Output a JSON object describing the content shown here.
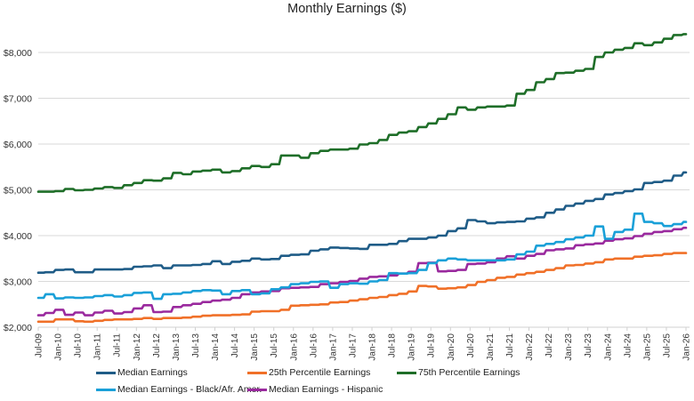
{
  "chart_data": {
    "type": "line",
    "title": "Monthly Earnings ($)",
    "xlabel": "",
    "ylabel": "",
    "ylim": [
      2000,
      8000
    ],
    "yticks": [
      2000,
      3000,
      4000,
      5000,
      6000,
      7000,
      8000
    ],
    "ytick_labels": [
      "$2,000",
      "$3,000",
      "$4,000",
      "$5,000",
      "$6,000",
      "$7,000",
      "$8,000"
    ],
    "grid": true,
    "legend_position": "bottom",
    "xtick_labels": [
      "Jul-09",
      "Jan-10",
      "Jul-10",
      "Jan-11",
      "Jul-11",
      "Jan-12",
      "Jul-12",
      "Jan-13",
      "Jul-13",
      "Jan-14",
      "Jul-14",
      "Jan-15",
      "Jul-15",
      "Jan-16",
      "Jul-16",
      "Jan-17",
      "Jul-17",
      "Jan-18",
      "Jul-18",
      "Jan-19",
      "Jul-19",
      "Jan-20",
      "Jul-20",
      "Jan-21",
      "Jul-21",
      "Jan-22",
      "Jul-22",
      "Jan-23",
      "Jul-23",
      "Jan-24",
      "Jul-24",
      "Jan-25",
      "Jul-25",
      "Jan-26"
    ],
    "x_unit": "quarters since Jul-09",
    "x": [
      0,
      1,
      2,
      3,
      4,
      5,
      6,
      7,
      8,
      9,
      10,
      11,
      12,
      13,
      14,
      15,
      16,
      17,
      18,
      19,
      20,
      21,
      22,
      23,
      24,
      25,
      26,
      27,
      28,
      29,
      30,
      31,
      32,
      33,
      34,
      35,
      36,
      37,
      38,
      39,
      40,
      41,
      42,
      43,
      44,
      45,
      46,
      47,
      48,
      49,
      50,
      51,
      52,
      53,
      54,
      55,
      56,
      57,
      58,
      59,
      60,
      61,
      62,
      63,
      64,
      65,
      66
    ],
    "series": [
      {
        "name": "Median Earnings",
        "color": "#1f5c87",
        "values": [
          3190,
          3200,
          3250,
          3260,
          3200,
          3200,
          3260,
          3260,
          3260,
          3270,
          3320,
          3330,
          3350,
          3290,
          3350,
          3350,
          3360,
          3380,
          3440,
          3380,
          3430,
          3450,
          3500,
          3480,
          3490,
          3560,
          3580,
          3590,
          3670,
          3700,
          3740,
          3730,
          3720,
          3710,
          3800,
          3800,
          3820,
          3880,
          3930,
          3930,
          3960,
          4000,
          4100,
          4160,
          4340,
          4310,
          4270,
          4290,
          4300,
          4310,
          4370,
          4400,
          4500,
          4570,
          4650,
          4700,
          4760,
          4800,
          4900,
          4930,
          4970,
          5010,
          5150,
          5170,
          5200,
          5310,
          5380
        ]
      },
      {
        "name": "25th Percentile Earnings",
        "color": "#f07028",
        "values": [
          2120,
          2120,
          2170,
          2170,
          2130,
          2120,
          2140,
          2160,
          2170,
          2170,
          2180,
          2200,
          2180,
          2200,
          2200,
          2210,
          2230,
          2250,
          2260,
          2260,
          2270,
          2280,
          2340,
          2350,
          2350,
          2380,
          2470,
          2480,
          2490,
          2500,
          2540,
          2550,
          2580,
          2610,
          2640,
          2660,
          2700,
          2730,
          2780,
          2900,
          2890,
          2840,
          2850,
          2870,
          2920,
          2990,
          3030,
          3080,
          3100,
          3150,
          3180,
          3210,
          3250,
          3290,
          3350,
          3360,
          3390,
          3420,
          3480,
          3500,
          3500,
          3540,
          3560,
          3570,
          3600,
          3620,
          3620
        ]
      },
      {
        "name": "75th Percentile Earnings",
        "color": "#1e6e28",
        "values": [
          4960,
          4960,
          4970,
          5020,
          4990,
          5000,
          5030,
          5060,
          5040,
          5100,
          5150,
          5210,
          5200,
          5250,
          5370,
          5340,
          5400,
          5420,
          5440,
          5380,
          5410,
          5470,
          5520,
          5500,
          5560,
          5750,
          5750,
          5700,
          5800,
          5850,
          5880,
          5880,
          5900,
          5990,
          6020,
          6090,
          6200,
          6250,
          6280,
          6370,
          6450,
          6550,
          6650,
          6800,
          6750,
          6800,
          6820,
          6820,
          6840,
          7100,
          7180,
          7350,
          7420,
          7550,
          7560,
          7600,
          7640,
          7900,
          8000,
          8060,
          8100,
          8200,
          8160,
          8220,
          8300,
          8380,
          8400
        ]
      },
      {
        "name": "Median Earnings - Black/Afr. Amer.",
        "color": "#1aa0d8",
        "values": [
          2640,
          2720,
          2630,
          2650,
          2640,
          2650,
          2680,
          2700,
          2670,
          2700,
          2750,
          2760,
          2620,
          2720,
          2730,
          2760,
          2790,
          2810,
          2800,
          2720,
          2790,
          2810,
          2720,
          2740,
          2830,
          2870,
          2940,
          2960,
          2990,
          3000,
          2860,
          2940,
          2960,
          2950,
          3000,
          3030,
          3180,
          3170,
          3180,
          3250,
          3400,
          3460,
          3500,
          3480,
          3460,
          3460,
          3460,
          3460,
          3480,
          3590,
          3650,
          3780,
          3820,
          3860,
          3920,
          3960,
          4000,
          4200,
          3930,
          4080,
          4130,
          4480,
          4300,
          4270,
          4210,
          4250,
          4300
        ]
      },
      {
        "name": "Median Earnings - Hispanic",
        "color": "#9a2a9e",
        "values": [
          2260,
          2310,
          2380,
          2270,
          2320,
          2260,
          2320,
          2360,
          2300,
          2330,
          2410,
          2480,
          2330,
          2340,
          2440,
          2480,
          2510,
          2550,
          2580,
          2600,
          2640,
          2720,
          2760,
          2780,
          2790,
          2850,
          2860,
          2870,
          2880,
          2940,
          2960,
          2990,
          3010,
          3060,
          3100,
          3110,
          3130,
          3170,
          3210,
          3400,
          3410,
          3220,
          3230,
          3250,
          3380,
          3390,
          3420,
          3500,
          3550,
          3500,
          3560,
          3600,
          3680,
          3700,
          3720,
          3790,
          3810,
          3830,
          3890,
          3920,
          3940,
          3990,
          4040,
          4080,
          4100,
          4140,
          4170
        ]
      }
    ]
  },
  "legend": {
    "items": [
      {
        "label": "Median Earnings",
        "color": "#1f5c87"
      },
      {
        "label": "25th Percentile Earnings",
        "color": "#f07028"
      },
      {
        "label": "75th Percentile Earnings",
        "color": "#1e6e28"
      },
      {
        "label": "Median Earnings - Black/Afr. Amer.",
        "color": "#1aa0d8"
      },
      {
        "label": "Median Earnings - Hispanic",
        "color": "#9a2a9e"
      }
    ]
  }
}
